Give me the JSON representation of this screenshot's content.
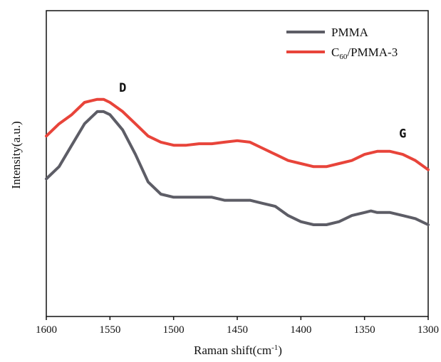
{
  "chart_data": {
    "type": "line",
    "xlabel": "Raman shift(cm",
    "xlabel_sup": "-1",
    "xlabel_tail": ")",
    "ylabel": "Intensity(a.u.)",
    "xlim": [
      1600,
      1300
    ],
    "ylim": [
      0,
      1
    ],
    "x_reversed": true,
    "y_ticks_shown": false,
    "grid": false,
    "legend_placement": "top-right",
    "x_ticks": [
      1600,
      1550,
      1500,
      1450,
      1400,
      1350,
      1300
    ],
    "x_tick_labels": [
      "1600",
      "1550",
      "1500",
      "1450",
      "1400",
      "1350",
      "1300"
    ],
    "series": [
      {
        "name": "PMMA",
        "color": "#5d5d66",
        "x": [
          1600,
          1590,
          1580,
          1570,
          1560,
          1555,
          1550,
          1540,
          1530,
          1520,
          1510,
          1500,
          1490,
          1480,
          1470,
          1460,
          1450,
          1440,
          1430,
          1420,
          1410,
          1400,
          1390,
          1380,
          1370,
          1360,
          1350,
          1345,
          1340,
          1330,
          1320,
          1310,
          1300
        ],
        "y": [
          0.45,
          0.49,
          0.56,
          0.63,
          0.67,
          0.67,
          0.66,
          0.61,
          0.53,
          0.44,
          0.4,
          0.39,
          0.39,
          0.39,
          0.39,
          0.38,
          0.38,
          0.38,
          0.37,
          0.36,
          0.33,
          0.31,
          0.3,
          0.3,
          0.31,
          0.33,
          0.34,
          0.345,
          0.34,
          0.34,
          0.33,
          0.32,
          0.3
        ]
      },
      {
        "name": "C60/PMMA-3",
        "name_parts": [
          "C",
          "60",
          "/PMMA-3"
        ],
        "color": "#e8443a",
        "x": [
          1600,
          1590,
          1580,
          1570,
          1560,
          1555,
          1550,
          1540,
          1530,
          1520,
          1510,
          1500,
          1490,
          1480,
          1470,
          1460,
          1450,
          1440,
          1430,
          1420,
          1410,
          1400,
          1390,
          1380,
          1370,
          1360,
          1350,
          1345,
          1340,
          1330,
          1320,
          1310,
          1300
        ],
        "y": [
          0.59,
          0.63,
          0.66,
          0.7,
          0.71,
          0.71,
          0.7,
          0.67,
          0.63,
          0.59,
          0.57,
          0.56,
          0.56,
          0.565,
          0.565,
          0.57,
          0.575,
          0.57,
          0.55,
          0.53,
          0.51,
          0.5,
          0.49,
          0.49,
          0.5,
          0.51,
          0.53,
          0.535,
          0.54,
          0.54,
          0.53,
          0.51,
          0.48
        ]
      }
    ],
    "annotations": [
      {
        "text": "D",
        "x": 1540,
        "y": 0.735
      },
      {
        "text": "G",
        "x": 1320,
        "y": 0.585
      }
    ]
  }
}
